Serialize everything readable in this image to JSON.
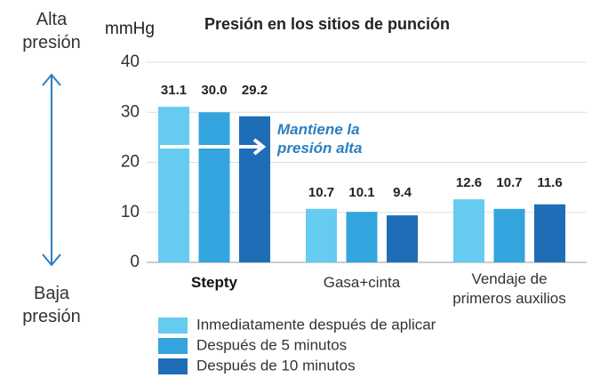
{
  "chart_data": {
    "type": "bar",
    "title": "Presión en los sitios de punción",
    "ylabel": "mmHg",
    "high_label": "Alta presión",
    "low_label": "Baja presión",
    "annotation": "Mantiene la presión alta",
    "categories": [
      "Stepty",
      "Gasa+cinta",
      "Vendaje de primeros auxilios"
    ],
    "series": [
      {
        "name": "Inmediatamente después de aplicar",
        "color": "#66cbf1",
        "values": [
          31.1,
          10.7,
          12.6
        ],
        "value_labels": [
          "31.1",
          "10.7",
          "12.6"
        ]
      },
      {
        "name": "Después de 5 minutos",
        "color": "#34a4de",
        "values": [
          30.0,
          10.1,
          10.7
        ],
        "value_labels": [
          "30.0",
          "10.1",
          "10.7"
        ]
      },
      {
        "name": "Después de 10 minutos",
        "color": "#1f6db6",
        "values": [
          29.2,
          9.4,
          11.6
        ],
        "value_labels": [
          "29.2",
          "9.4",
          "11.6"
        ]
      }
    ],
    "ylim": [
      0,
      40
    ],
    "yticks": [
      0,
      10,
      20,
      30,
      40
    ],
    "grid": true
  }
}
